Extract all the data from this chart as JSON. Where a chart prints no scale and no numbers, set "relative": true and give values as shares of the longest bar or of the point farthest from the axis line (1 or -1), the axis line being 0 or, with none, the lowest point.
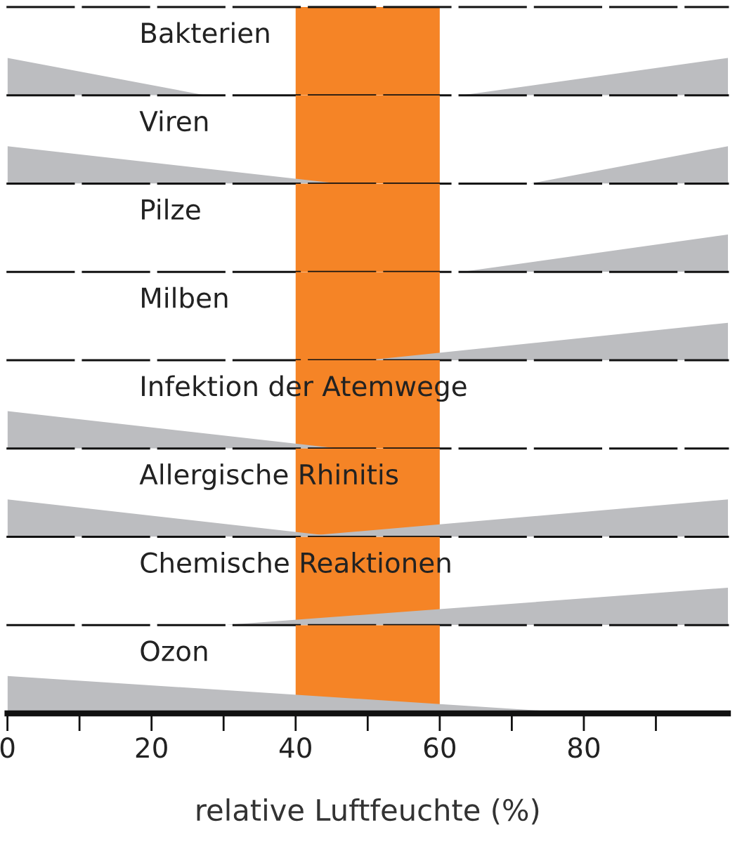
{
  "chart_data": [
    {
      "type": "area",
      "title": "Bakterien",
      "relative": true,
      "xlim": [
        0,
        100
      ],
      "tick_labels": false,
      "bands": [
        {
          "axis": "x",
          "from": 40,
          "to": 60,
          "color": "#f58426"
        }
      ],
      "series": [
        {
          "color": "#bcbdc0",
          "x": [
            0,
            27.5
          ],
          "values": [
            1,
            0
          ]
        },
        {
          "color": "#bcbdc0",
          "x": [
            63,
            100
          ],
          "values": [
            0,
            1
          ]
        }
      ]
    },
    {
      "type": "area",
      "title": "Viren",
      "relative": true,
      "xlim": [
        0,
        100
      ],
      "tick_labels": false,
      "bands": [
        {
          "axis": "x",
          "from": 40,
          "to": 60,
          "color": "#f58426"
        }
      ],
      "series": [
        {
          "color": "#bcbdc0",
          "x": [
            0,
            46
          ],
          "values": [
            1,
            0
          ]
        },
        {
          "color": "#bcbdc0",
          "x": [
            72.5,
            100
          ],
          "values": [
            0,
            1
          ]
        }
      ]
    },
    {
      "type": "area",
      "title": "Pilze",
      "relative": true,
      "xlim": [
        0,
        100
      ],
      "tick_labels": false,
      "bands": [
        {
          "axis": "x",
          "from": 40,
          "to": 60,
          "color": "#f58426"
        }
      ],
      "series": [
        {
          "color": "#bcbdc0",
          "x": [
            63,
            100
          ],
          "values": [
            0,
            1
          ]
        }
      ]
    },
    {
      "type": "area",
      "title": "Milben",
      "relative": true,
      "xlim": [
        0,
        100
      ],
      "tick_labels": false,
      "bands": [
        {
          "axis": "x",
          "from": 40,
          "to": 60,
          "color": "#f58426"
        }
      ],
      "series": [
        {
          "color": "#bcbdc0",
          "x": [
            50,
            100
          ],
          "values": [
            0,
            1
          ]
        }
      ]
    },
    {
      "type": "area",
      "title": "Infektion der Atemwege",
      "relative": true,
      "xlim": [
        0,
        100
      ],
      "tick_labels": false,
      "bands": [
        {
          "axis": "x",
          "from": 40,
          "to": 60,
          "color": "#f58426"
        }
      ],
      "series": [
        {
          "color": "#bcbdc0",
          "x": [
            0,
            46
          ],
          "values": [
            1,
            0
          ]
        }
      ]
    },
    {
      "type": "area",
      "title": "Allergische Rhinitis",
      "relative": true,
      "xlim": [
        0,
        100
      ],
      "tick_labels": false,
      "bands": [
        {
          "axis": "x",
          "from": 40,
          "to": 60,
          "color": "#f58426"
        }
      ],
      "series": [
        {
          "color": "#bcbdc0",
          "x": [
            0,
            46
          ],
          "values": [
            1,
            0
          ]
        },
        {
          "color": "#bcbdc0",
          "x": [
            40,
            100
          ],
          "values": [
            0,
            1
          ]
        }
      ]
    },
    {
      "type": "area",
      "title": "Chemische Reaktionen",
      "relative": true,
      "xlim": [
        0,
        100
      ],
      "tick_labels": false,
      "bands": [
        {
          "axis": "x",
          "from": 40,
          "to": 60,
          "color": "#f58426"
        }
      ],
      "series": [
        {
          "color": "#bcbdc0",
          "x": [
            30,
            100
          ],
          "values": [
            0,
            1
          ]
        }
      ]
    },
    {
      "type": "area",
      "title": "Ozon",
      "xlabel": "relative Luftfeuchte (%)",
      "relative": true,
      "xlim": [
        0,
        100
      ],
      "xticks": [
        0,
        {
          "value": 10,
          "label": null
        },
        20,
        {
          "value": 30,
          "label": null
        },
        40,
        {
          "value": 50,
          "label": null
        },
        60,
        {
          "value": 70,
          "label": null
        },
        80,
        {
          "value": 90,
          "label": null
        }
      ],
      "bands": [
        {
          "axis": "x",
          "from": 40,
          "to": 60,
          "color": "#f58426"
        }
      ],
      "series": [
        {
          "color": "#bcbdc0",
          "x": [
            0,
            80
          ],
          "values": [
            1,
            0
          ]
        }
      ]
    }
  ]
}
